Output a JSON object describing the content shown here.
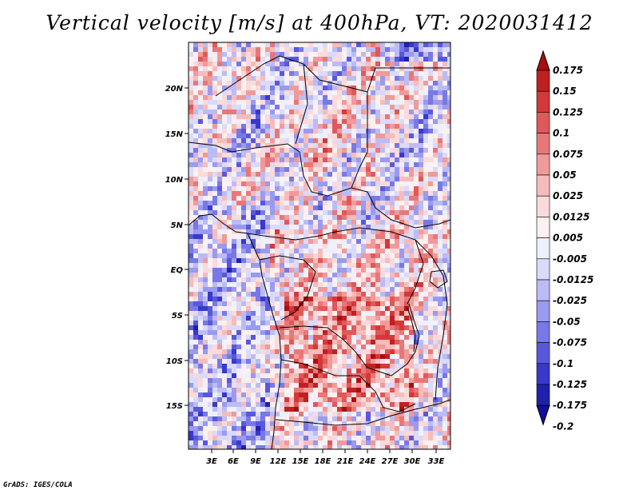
{
  "title": "Vertical velocity [m/s] at 400hPa, VT: 2020031412",
  "credit": "GrADS: IGES/COLA",
  "map": {
    "lat_labels": [
      "20N",
      "15N",
      "10N",
      "5N",
      "EQ",
      "5S",
      "10S",
      "15S"
    ],
    "lon_labels": [
      "3E",
      "6E",
      "9E",
      "12E",
      "15E",
      "18E",
      "21E",
      "24E",
      "27E",
      "30E",
      "33E"
    ]
  },
  "colorbar": {
    "labels": [
      "0.175",
      "0.15",
      "0.125",
      "0.1",
      "0.075",
      "0.05",
      "0.025",
      "0.0125",
      "0.005",
      "-0.005",
      "-0.0125",
      "-0.025",
      "-0.05",
      "-0.075",
      "-0.1",
      "-0.125",
      "-0.175",
      "-0.2"
    ],
    "colors": [
      "#a81010",
      "#c02020",
      "#d43838",
      "#e05858",
      "#e87878",
      "#f09a9a",
      "#f6bcbc",
      "#fadada",
      "#fdf0f0",
      "#f0f0fd",
      "#dadafa",
      "#bcbcf5",
      "#9a9aee",
      "#7878e6",
      "#5858dc",
      "#3838cc",
      "#2020b0",
      "#10109a"
    ]
  }
}
